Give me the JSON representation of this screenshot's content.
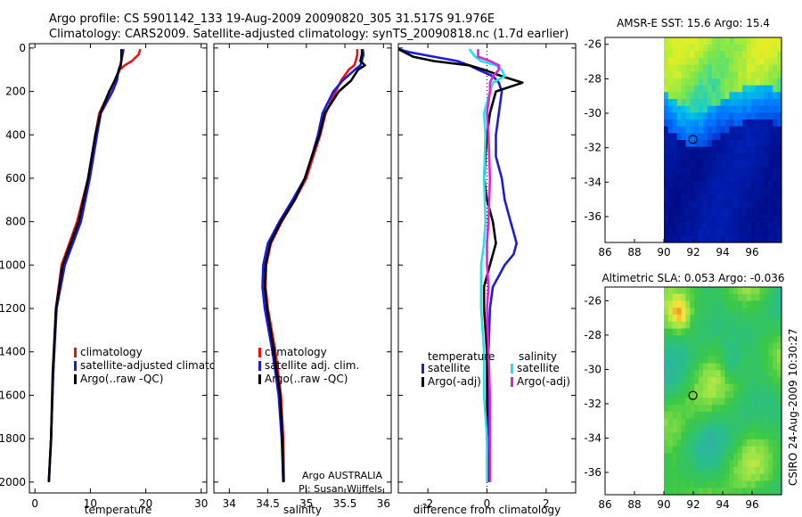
{
  "header": {
    "line1": "Argo profile: CS 5901142_133 19-Aug-2009 20090820_305 31.517S 91.976E",
    "line2": "Climatology: CARS2009. Satellite-adjusted climatology: synTS_20090818.nc (1.7d earlier)"
  },
  "colors": {
    "clim": "#ee1111",
    "sat": "#1a1ae0",
    "argo": "#000000",
    "sat_sal": "#22e4e4",
    "argo_sal": "#e020e0"
  },
  "chart_data": [
    {
      "type": "line",
      "title": "",
      "xlabel": "temperature",
      "ylabel": "",
      "xlim": [
        -1,
        31
      ],
      "ylim": [
        2050,
        -20
      ],
      "xticks": [
        "0",
        "10",
        "20",
        "30"
      ],
      "yticks": [
        "0",
        "200",
        "400",
        "600",
        "800",
        "1000",
        "1200",
        "1400",
        "1600",
        "1800",
        "2000"
      ],
      "legend": [
        "climatology",
        "satellite-adjusted climatology",
        "Argo(..raw -QC)"
      ],
      "series": [
        {
          "name": "climatology",
          "depth": [
            5,
            30,
            60,
            80,
            100,
            150,
            200,
            300,
            400,
            600,
            800,
            1000,
            1200,
            1500,
            1800,
            2000
          ],
          "values": [
            19.0,
            18.7,
            17.5,
            16.2,
            15.3,
            14.5,
            13.5,
            11.6,
            10.9,
            9.6,
            7.6,
            4.8,
            3.8,
            3.3,
            2.9,
            2.5
          ]
        },
        {
          "name": "satellite-adjusted climatology",
          "depth": [
            5,
            30,
            60,
            80,
            100,
            150,
            200,
            300,
            400,
            600,
            800,
            1000,
            1200,
            1500,
            1800,
            2000
          ],
          "values": [
            16.0,
            15.8,
            15.6,
            15.4,
            15.1,
            14.8,
            14.0,
            11.9,
            11.2,
            9.9,
            8.3,
            5.4,
            3.9,
            3.3,
            2.9,
            2.5
          ]
        },
        {
          "name": "Argo(..raw -QC)",
          "depth": [
            5,
            50,
            80,
            100,
            150,
            200,
            300,
            400,
            600,
            800,
            1000,
            1200,
            1500,
            1800,
            2000
          ],
          "values": [
            15.6,
            15.6,
            15.5,
            15.2,
            14.4,
            13.4,
            11.8,
            10.9,
            9.6,
            7.9,
            5.0,
            3.8,
            3.2,
            2.9,
            2.5
          ]
        }
      ]
    },
    {
      "type": "line",
      "title": "",
      "xlabel": "salinity",
      "ylabel": "",
      "xlim": [
        33.8,
        36.1
      ],
      "ylim": [
        2050,
        -20
      ],
      "xticks": [
        "34",
        "34.5",
        "35",
        "35.5",
        "36"
      ],
      "legend": [
        "climatology",
        "satellite adj. clim.",
        "Argo(..raw -QC)"
      ],
      "annotation": [
        "Argo AUSTRALIA",
        "PI: Susan Wijffels"
      ],
      "series": [
        {
          "name": "climatology",
          "depth": [
            5,
            30,
            60,
            80,
            100,
            150,
            200,
            300,
            400,
            500,
            600,
            700,
            800,
            900,
            1000,
            1100,
            1200,
            1400,
            1600,
            1800,
            2000
          ],
          "values": [
            35.66,
            35.66,
            35.64,
            35.62,
            35.55,
            35.45,
            35.38,
            35.25,
            35.18,
            35.09,
            35.0,
            34.85,
            34.68,
            34.54,
            34.48,
            34.47,
            34.5,
            34.6,
            34.67,
            34.7,
            34.71
          ]
        },
        {
          "name": "satellite adj. clim.",
          "depth": [
            5,
            30,
            60,
            80,
            100,
            150,
            200,
            300,
            400,
            500,
            600,
            700,
            800,
            900,
            1000,
            1100,
            1200,
            1400,
            1600,
            1800,
            2000
          ],
          "values": [
            35.73,
            35.74,
            35.72,
            35.7,
            35.63,
            35.47,
            35.35,
            35.21,
            35.15,
            35.07,
            34.98,
            34.82,
            34.65,
            34.5,
            34.44,
            34.43,
            34.46,
            34.56,
            34.64,
            34.68,
            34.7
          ]
        },
        {
          "name": "Argo(..raw -QC)",
          "depth": [
            5,
            30,
            60,
            80,
            100,
            150,
            200,
            300,
            400,
            500,
            600,
            700,
            800,
            900,
            1000,
            1100,
            1200,
            1400,
            1600,
            1800,
            2000
          ],
          "values": [
            35.72,
            35.72,
            35.7,
            35.76,
            35.67,
            35.58,
            35.42,
            35.24,
            35.17,
            35.07,
            34.98,
            34.85,
            34.67,
            34.53,
            34.47,
            34.46,
            34.49,
            34.58,
            34.66,
            34.69,
            34.7
          ]
        }
      ]
    },
    {
      "type": "line",
      "title": "",
      "xlabel": "difference from climatology",
      "ylabel": "",
      "xlim": [
        -3,
        3
      ],
      "ylim": [
        2050,
        -20
      ],
      "xticks": [
        "-2",
        "0",
        "2"
      ],
      "legend_titles": [
        "temperature",
        "salinity"
      ],
      "legend": [
        "satellite",
        "Argo(-adj)",
        "satellite",
        "Argo(-adj)"
      ],
      "series": [
        {
          "name": "temperature satellite",
          "depth": [
            5,
            20,
            40,
            60,
            80,
            100,
            130,
            160,
            200,
            300,
            400,
            500,
            600,
            700,
            800,
            850,
            900,
            950,
            1000,
            1050,
            1100,
            1200,
            1400,
            1600,
            1800,
            2000
          ],
          "values": [
            -3.0,
            -2.6,
            -1.8,
            -1.0,
            -0.6,
            -0.3,
            0.2,
            0.4,
            0.5,
            0.4,
            0.3,
            0.3,
            0.5,
            0.6,
            0.8,
            0.9,
            1.0,
            0.9,
            0.6,
            0.4,
            0.2,
            0.1,
            0.05,
            0.05,
            0.05,
            0.05
          ]
        },
        {
          "name": "temperature Argo(-adj)",
          "depth": [
            5,
            40,
            60,
            80,
            100,
            130,
            160,
            200,
            300,
            400,
            500,
            600,
            700,
            800,
            900,
            1000,
            1100,
            1200,
            1400,
            1600,
            1800,
            2000
          ],
          "values": [
            -3.0,
            -2.5,
            -1.8,
            -0.6,
            -0.1,
            0.5,
            1.2,
            0.3,
            0.1,
            0.0,
            -0.05,
            -0.1,
            0.0,
            0.2,
            0.3,
            0.1,
            -0.1,
            -0.1,
            0.0,
            0.0,
            0.0,
            0.05
          ]
        },
        {
          "name": "salinity satellite",
          "depth": [
            5,
            40,
            60,
            80,
            100,
            130,
            160,
            200,
            300,
            400,
            600,
            800,
            900,
            1000,
            1100,
            1200,
            1400,
            1600,
            1800,
            2000
          ],
          "values": [
            -0.6,
            -0.4,
            -0.2,
            0.3,
            0.5,
            0.6,
            0.2,
            0.1,
            -0.1,
            -0.05,
            -0.1,
            -0.05,
            -0.1,
            -0.2,
            -0.2,
            -0.2,
            -0.1,
            -0.1,
            0.0,
            0.0
          ]
        },
        {
          "name": "salinity Argo(-adj)",
          "depth": [
            5,
            40,
            60,
            80,
            100,
            130,
            160,
            200,
            300,
            400,
            600,
            800,
            900,
            1000,
            1100,
            1200,
            1400,
            1600,
            1800,
            2000
          ],
          "values": [
            -0.3,
            -0.3,
            0.1,
            0.4,
            0.4,
            0.2,
            0.1,
            0.1,
            0.0,
            0.05,
            0.1,
            0.05,
            0.0,
            0.0,
            0.05,
            0.0,
            0.05,
            0.1,
            0.1,
            0.1
          ]
        }
      ]
    }
  ],
  "maps": {
    "sst_title": "AMSR-E SST: 15.6 Argo: 15.4",
    "sla_title": "Altimetric SLA: 0.053 Argo: -0.036",
    "lon_ticks": [
      "86",
      "88",
      "90",
      "92",
      "94",
      "96"
    ],
    "lat_ticks": [
      "-26",
      "-28",
      "-30",
      "-32",
      "-34",
      "-36"
    ],
    "float_lon": 91.976,
    "float_lat": -31.517
  },
  "footer": {
    "stamp": "CSIRO 24-Aug-2009 10:30:27"
  }
}
